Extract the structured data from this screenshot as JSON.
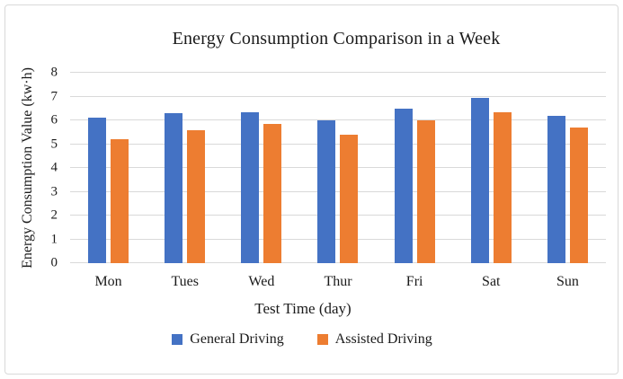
{
  "window": {
    "background": "#ffffff",
    "frame_border_color": "#d9d9d9"
  },
  "chart_data": {
    "type": "bar",
    "title": "Energy Consumption Comparison in a Week",
    "xlabel": "Test Time (day)",
    "ylabel": "Energy Consumption Value (kw·h)",
    "categories": [
      "Mon",
      "Tues",
      "Wed",
      "Thur",
      "Fri",
      "Sat",
      "Sun"
    ],
    "series": [
      {
        "name": "General Driving",
        "color": "#4472C4",
        "values": [
          6.1,
          6.3,
          6.35,
          6.0,
          6.5,
          6.95,
          6.2
        ]
      },
      {
        "name": "Assisted Driving",
        "color": "#ED7D31",
        "values": [
          5.2,
          5.6,
          5.85,
          5.4,
          6.0,
          6.35,
          5.7
        ]
      }
    ],
    "ylim": [
      0,
      8
    ],
    "yticks": [
      0,
      1,
      2,
      3,
      4,
      5,
      6,
      7,
      8
    ],
    "grid": true,
    "gridline_color": "#d9d9d9",
    "legend_position": "bottom"
  }
}
